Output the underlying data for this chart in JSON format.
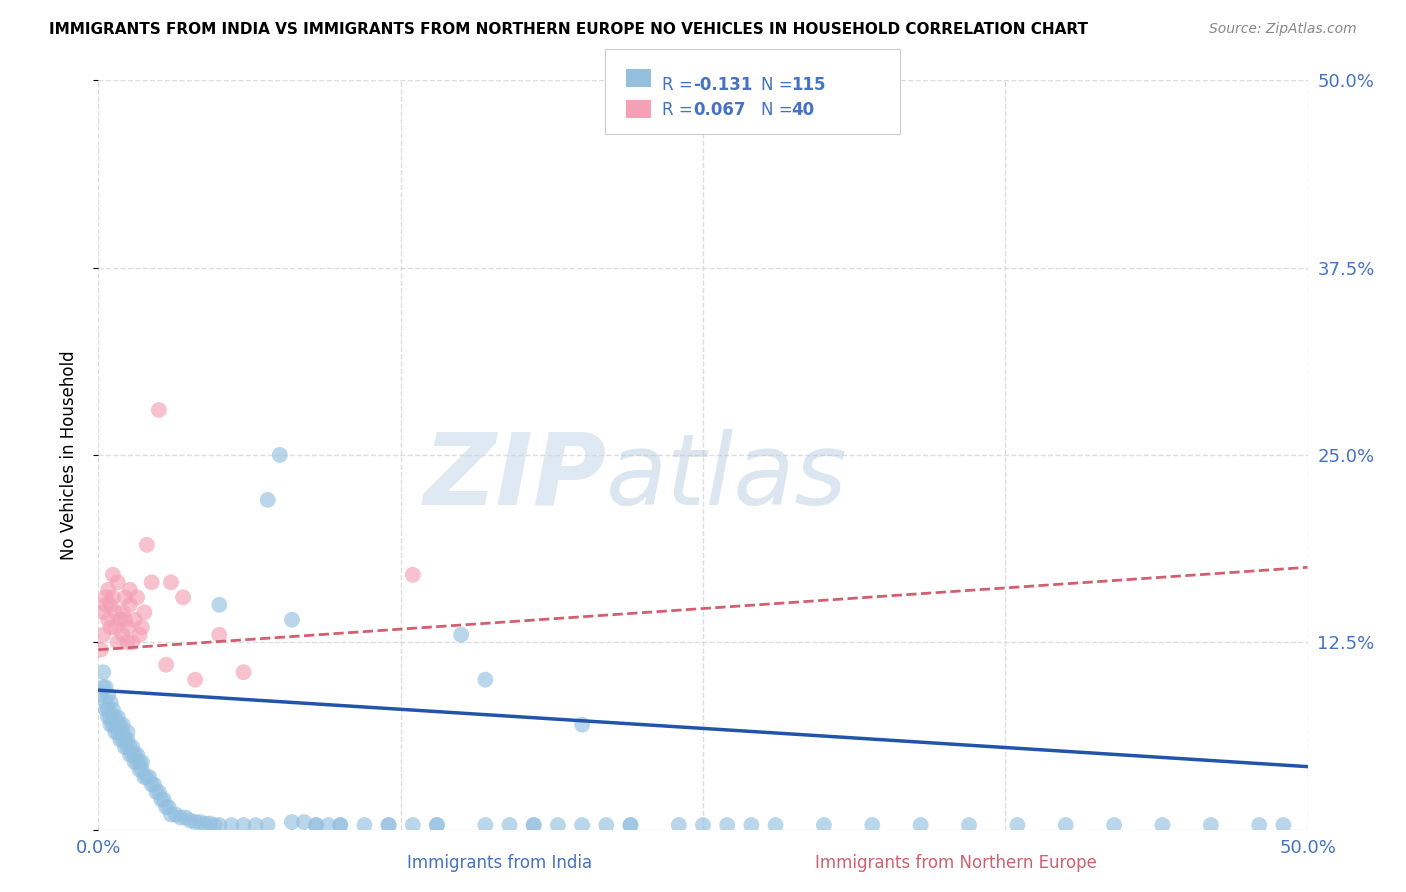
{
  "title": "IMMIGRANTS FROM INDIA VS IMMIGRANTS FROM NORTHERN EUROPE NO VEHICLES IN HOUSEHOLD CORRELATION CHART",
  "source": "Source: ZipAtlas.com",
  "xlabel_india": "Immigrants from India",
  "xlabel_northern": "Immigrants from Northern Europe",
  "ylabel": "No Vehicles in Household",
  "xlim": [
    0.0,
    0.5
  ],
  "ylim": [
    0.0,
    0.5
  ],
  "india_color": "#94c0e0",
  "northern_color": "#f4a0b5",
  "india_R": -0.131,
  "india_N": 115,
  "northern_R": 0.067,
  "northern_N": 40,
  "india_line_color": "#2255aa",
  "northern_line_color": "#d06070",
  "axis_color": "#4472c4",
  "watermark_zip_color": "#c8d8e8",
  "watermark_atlas_color": "#a8bccf",
  "india_scatter_x": [
    0.001,
    0.002,
    0.002,
    0.003,
    0.003,
    0.003,
    0.004,
    0.004,
    0.004,
    0.005,
    0.005,
    0.005,
    0.006,
    0.006,
    0.006,
    0.007,
    0.007,
    0.007,
    0.008,
    0.008,
    0.008,
    0.009,
    0.009,
    0.009,
    0.01,
    0.01,
    0.01,
    0.011,
    0.011,
    0.012,
    0.012,
    0.012,
    0.013,
    0.013,
    0.014,
    0.014,
    0.015,
    0.015,
    0.016,
    0.016,
    0.017,
    0.017,
    0.018,
    0.018,
    0.019,
    0.02,
    0.021,
    0.022,
    0.023,
    0.024,
    0.025,
    0.026,
    0.027,
    0.028,
    0.029,
    0.03,
    0.032,
    0.034,
    0.036,
    0.038,
    0.04,
    0.042,
    0.044,
    0.046,
    0.048,
    0.05,
    0.055,
    0.06,
    0.065,
    0.07,
    0.075,
    0.08,
    0.085,
    0.09,
    0.095,
    0.1,
    0.11,
    0.12,
    0.13,
    0.14,
    0.15,
    0.16,
    0.17,
    0.18,
    0.19,
    0.2,
    0.21,
    0.22,
    0.24,
    0.26,
    0.28,
    0.3,
    0.32,
    0.34,
    0.36,
    0.38,
    0.4,
    0.42,
    0.44,
    0.46,
    0.48,
    0.49,
    0.05,
    0.07,
    0.08,
    0.09,
    0.1,
    0.12,
    0.14,
    0.16,
    0.18,
    0.2,
    0.22,
    0.25,
    0.27
  ],
  "india_scatter_y": [
    0.09,
    0.095,
    0.105,
    0.08,
    0.085,
    0.095,
    0.075,
    0.08,
    0.09,
    0.07,
    0.075,
    0.085,
    0.07,
    0.075,
    0.08,
    0.065,
    0.07,
    0.075,
    0.065,
    0.07,
    0.075,
    0.06,
    0.065,
    0.07,
    0.06,
    0.065,
    0.07,
    0.055,
    0.06,
    0.055,
    0.06,
    0.065,
    0.05,
    0.055,
    0.05,
    0.055,
    0.045,
    0.05,
    0.045,
    0.05,
    0.04,
    0.045,
    0.04,
    0.045,
    0.035,
    0.035,
    0.035,
    0.03,
    0.03,
    0.025,
    0.025,
    0.02,
    0.02,
    0.015,
    0.015,
    0.01,
    0.01,
    0.008,
    0.008,
    0.006,
    0.005,
    0.005,
    0.004,
    0.004,
    0.003,
    0.003,
    0.003,
    0.003,
    0.003,
    0.003,
    0.25,
    0.005,
    0.005,
    0.003,
    0.003,
    0.003,
    0.003,
    0.003,
    0.003,
    0.003,
    0.13,
    0.003,
    0.003,
    0.003,
    0.003,
    0.003,
    0.003,
    0.003,
    0.003,
    0.003,
    0.003,
    0.003,
    0.003,
    0.003,
    0.003,
    0.003,
    0.003,
    0.003,
    0.003,
    0.003,
    0.003,
    0.003,
    0.15,
    0.22,
    0.14,
    0.003,
    0.003,
    0.003,
    0.003,
    0.1,
    0.003,
    0.07,
    0.003,
    0.003,
    0.003
  ],
  "northern_scatter_x": [
    0.001,
    0.002,
    0.002,
    0.003,
    0.003,
    0.004,
    0.004,
    0.005,
    0.005,
    0.006,
    0.006,
    0.007,
    0.007,
    0.008,
    0.008,
    0.009,
    0.01,
    0.01,
    0.011,
    0.011,
    0.012,
    0.012,
    0.013,
    0.013,
    0.014,
    0.015,
    0.016,
    0.017,
    0.018,
    0.019,
    0.02,
    0.022,
    0.025,
    0.028,
    0.03,
    0.035,
    0.04,
    0.05,
    0.06,
    0.13
  ],
  "northern_scatter_y": [
    0.12,
    0.145,
    0.13,
    0.15,
    0.155,
    0.14,
    0.16,
    0.135,
    0.15,
    0.155,
    0.17,
    0.145,
    0.135,
    0.165,
    0.125,
    0.14,
    0.13,
    0.145,
    0.155,
    0.14,
    0.125,
    0.135,
    0.15,
    0.16,
    0.125,
    0.14,
    0.155,
    0.13,
    0.135,
    0.145,
    0.19,
    0.165,
    0.28,
    0.11,
    0.165,
    0.155,
    0.1,
    0.13,
    0.105,
    0.17
  ],
  "india_line_x": [
    0.0,
    0.5
  ],
  "india_line_y": [
    0.093,
    0.042
  ],
  "northern_line_x": [
    0.0,
    0.5
  ],
  "northern_line_y": [
    0.12,
    0.175
  ],
  "background_color": "#ffffff",
  "grid_color": "#dddddd"
}
